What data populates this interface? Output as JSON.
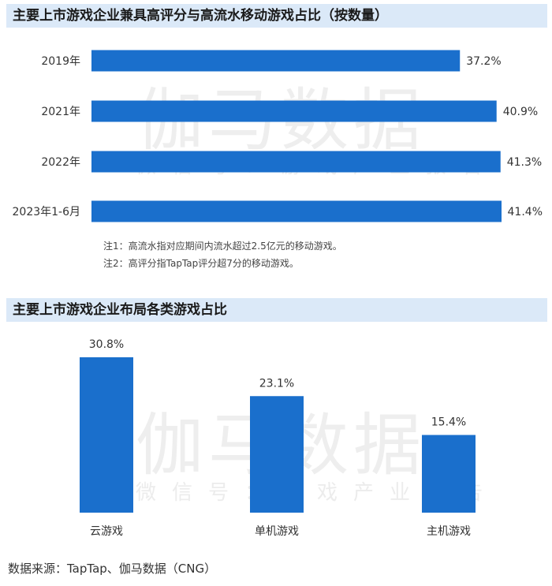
{
  "chart1": {
    "header": "主要上市游戏企业兼具高评分与高流水移动游戏占比（按数量）",
    "watermark_main": "伽马数据",
    "watermark_sub": "微信号：游戏产业报告",
    "notes": [
      "注1：高流水指对应期间内流水超过2.5亿元的移动游戏。",
      "注2：高评分指TapTap评分超7分的移动游戏。"
    ]
  },
  "chart2": {
    "header": "主要上市游戏企业布局各类游戏占比",
    "watermark_main": "伽马数据",
    "watermark_sub": "微信号：游戏产业报告"
  },
  "source": "数据来源：TapTap、伽马数据（CNG）",
  "colors": {
    "bar": "#1a6fcc",
    "header_bg": "#dbe9f8"
  },
  "chart_data": [
    {
      "type": "bar",
      "orientation": "horizontal",
      "title": "主要上市游戏企业兼具高评分与高流水移动游戏占比（按数量）",
      "categories": [
        "2019年",
        "2021年",
        "2022年",
        "2023年1-6月"
      ],
      "values": [
        37.2,
        40.9,
        41.3,
        41.4
      ],
      "value_labels": [
        "37.2%",
        "40.9%",
        "41.3%",
        "41.4%"
      ],
      "unit": "%",
      "xlim": [
        0,
        41.4
      ]
    },
    {
      "type": "bar",
      "orientation": "vertical",
      "title": "主要上市游戏企业布局各类游戏占比",
      "categories": [
        "云游戏",
        "单机游戏",
        "主机游戏"
      ],
      "values": [
        30.8,
        23.1,
        15.4
      ],
      "value_labels": [
        "30.8%",
        "23.1%",
        "15.4%"
      ],
      "unit": "%",
      "ylim": [
        0,
        30.8
      ]
    }
  ]
}
